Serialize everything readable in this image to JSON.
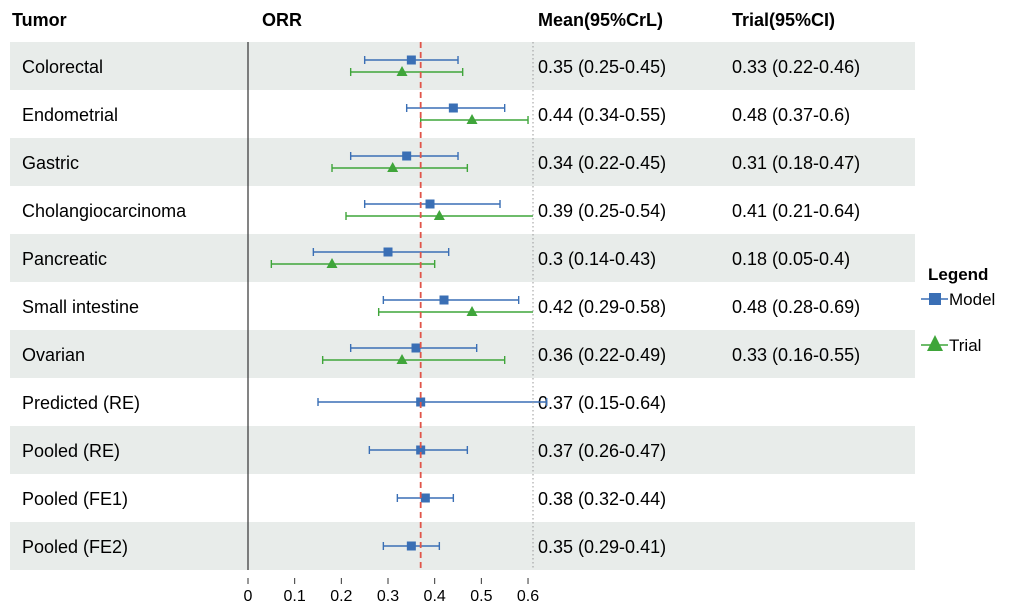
{
  "headers": {
    "tumor": "Tumor",
    "orr": "ORR",
    "mean": "Mean(95%CrL)",
    "trial": "Trial(95%CI)"
  },
  "legend": {
    "title": "Legend",
    "model_label": "Model",
    "trial_label": "Trial"
  },
  "colors": {
    "model": "#3a6fb5",
    "trial": "#3fa53a",
    "ref_line": "#e0554a",
    "stripe": "#e8ecea"
  },
  "chart_data": {
    "type": "forest",
    "xlim": [
      0,
      0.6
    ],
    "xticks": [
      0,
      0.1,
      0.2,
      0.3,
      0.4,
      0.5,
      0.6
    ],
    "xtick_labels": [
      "0",
      "0.1",
      "0.2",
      "0.3",
      "0.4",
      "0.5",
      "0.6"
    ],
    "reference_line": 0.37,
    "rows": [
      {
        "tumor": "Colorectal",
        "model": {
          "mean": 0.35,
          "lo": 0.25,
          "hi": 0.45
        },
        "trial": {
          "mean": 0.33,
          "lo": 0.22,
          "hi": 0.46
        },
        "mean_text": "0.35 (0.25-0.45)",
        "trial_text": "0.33 (0.22-0.46)"
      },
      {
        "tumor": "Endometrial",
        "model": {
          "mean": 0.44,
          "lo": 0.34,
          "hi": 0.55
        },
        "trial": {
          "mean": 0.48,
          "lo": 0.37,
          "hi": 0.6
        },
        "mean_text": "0.44 (0.34-0.55)",
        "trial_text": "0.48 (0.37-0.6)"
      },
      {
        "tumor": "Gastric",
        "model": {
          "mean": 0.34,
          "lo": 0.22,
          "hi": 0.45
        },
        "trial": {
          "mean": 0.31,
          "lo": 0.18,
          "hi": 0.47
        },
        "mean_text": "0.34 (0.22-0.45)",
        "trial_text": "0.31 (0.18-0.47)"
      },
      {
        "tumor": "Cholangiocarcinoma",
        "model": {
          "mean": 0.39,
          "lo": 0.25,
          "hi": 0.54
        },
        "trial": {
          "mean": 0.41,
          "lo": 0.21,
          "hi": 0.64
        },
        "mean_text": "0.39 (0.25-0.54)",
        "trial_text": "0.41 (0.21-0.64)"
      },
      {
        "tumor": "Pancreatic",
        "model": {
          "mean": 0.3,
          "lo": 0.14,
          "hi": 0.43
        },
        "trial": {
          "mean": 0.18,
          "lo": 0.05,
          "hi": 0.4
        },
        "mean_text": "0.3 (0.14-0.43)",
        "trial_text": "0.18 (0.05-0.4)"
      },
      {
        "tumor": "Small intestine",
        "model": {
          "mean": 0.42,
          "lo": 0.29,
          "hi": 0.58
        },
        "trial": {
          "mean": 0.48,
          "lo": 0.28,
          "hi": 0.69
        },
        "mean_text": "0.42 (0.29-0.58)",
        "trial_text": "0.48 (0.28-0.69)"
      },
      {
        "tumor": "Ovarian",
        "model": {
          "mean": 0.36,
          "lo": 0.22,
          "hi": 0.49
        },
        "trial": {
          "mean": 0.33,
          "lo": 0.16,
          "hi": 0.55
        },
        "mean_text": "0.36 (0.22-0.49)",
        "trial_text": "0.33 (0.16-0.55)"
      },
      {
        "tumor": "Predicted (RE)",
        "model": {
          "mean": 0.37,
          "lo": 0.15,
          "hi": 0.64
        },
        "trial": null,
        "mean_text": "0.37 (0.15-0.64)",
        "trial_text": ""
      },
      {
        "tumor": "Pooled (RE)",
        "model": {
          "mean": 0.37,
          "lo": 0.26,
          "hi": 0.47
        },
        "trial": null,
        "mean_text": "0.37 (0.26-0.47)",
        "trial_text": ""
      },
      {
        "tumor": "Pooled (FE1)",
        "model": {
          "mean": 0.38,
          "lo": 0.32,
          "hi": 0.44
        },
        "trial": null,
        "mean_text": "0.38 (0.32-0.44)",
        "trial_text": ""
      },
      {
        "tumor": "Pooled (FE2)",
        "model": {
          "mean": 0.35,
          "lo": 0.29,
          "hi": 0.41
        },
        "trial": null,
        "mean_text": "0.35 (0.29-0.41)",
        "trial_text": ""
      }
    ]
  }
}
